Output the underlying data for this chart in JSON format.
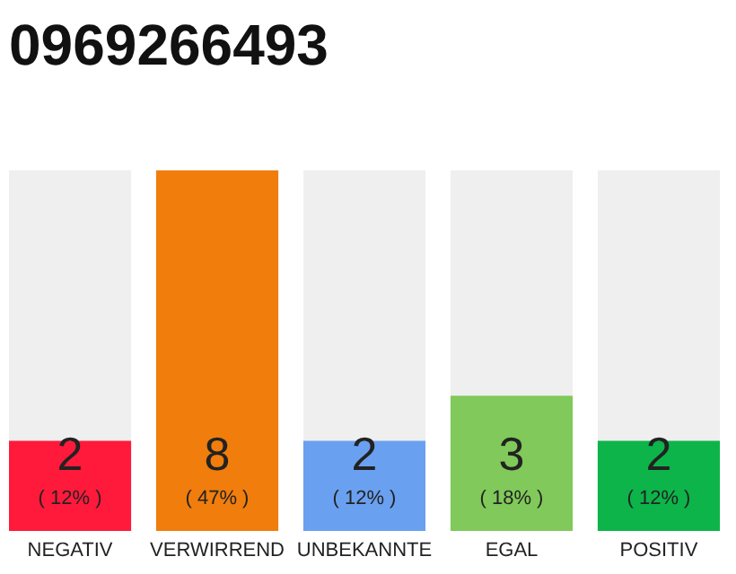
{
  "chart_data": {
    "type": "bar",
    "title": "0969266493",
    "categories": [
      "NEGATIV",
      "VERWIRREND",
      "UNBEKANNTE",
      "EGAL",
      "POSITIV"
    ],
    "values": [
      2,
      8,
      2,
      3,
      2
    ],
    "colors": [
      "#ff1a3c",
      "#f07d0c",
      "#6aa0f0",
      "#80c95a",
      "#0cb44a"
    ],
    "ylim": [
      0,
      8
    ],
    "tick_labels": "x",
    "data_labels": true,
    "annotations": [
      "( 12% )",
      "( 47% )",
      "( 12% )",
      "( 18% )",
      "( 12% )"
    ]
  }
}
